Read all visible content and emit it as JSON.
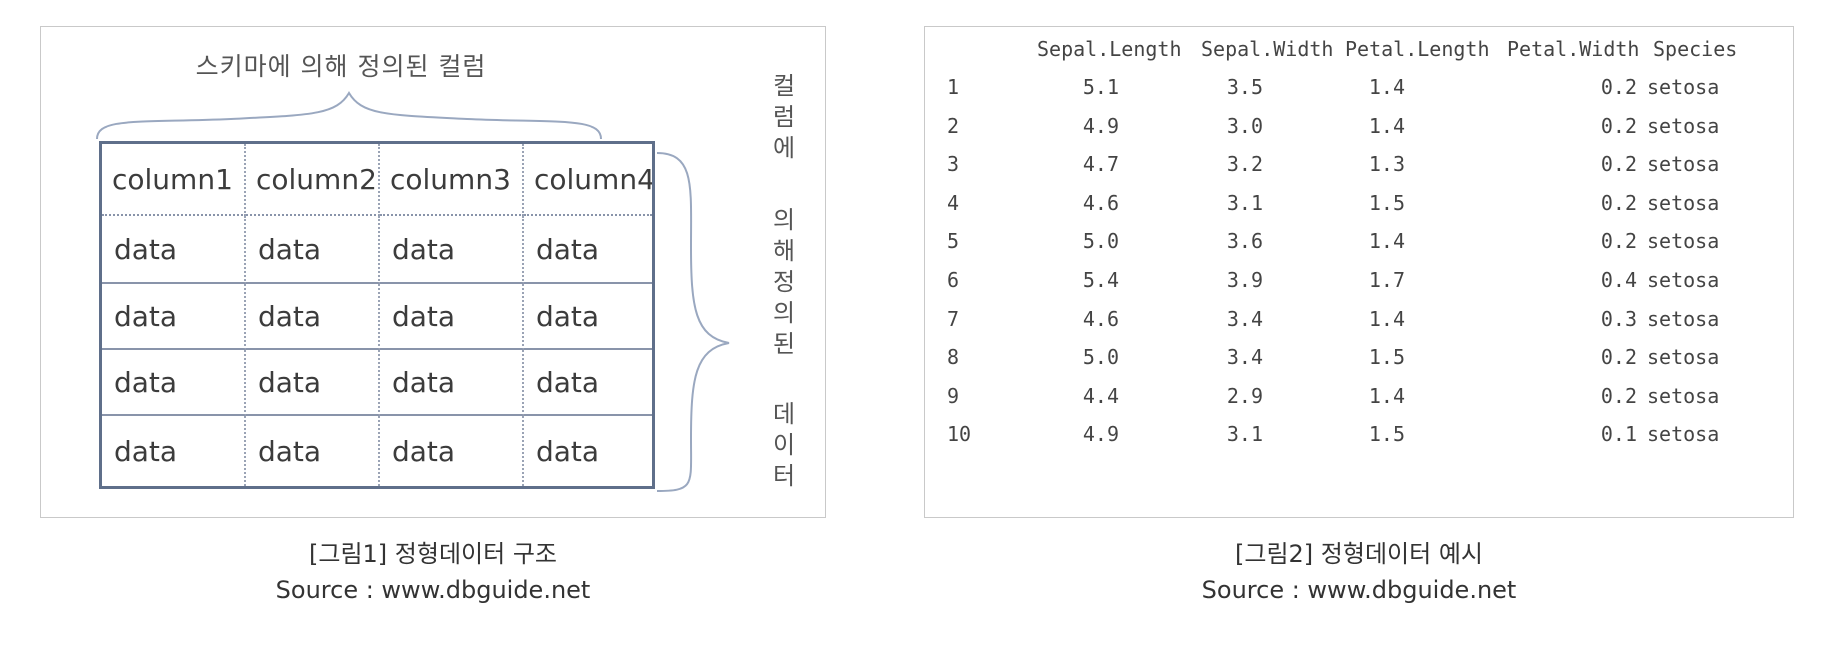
{
  "fig1": {
    "schema_label": "스키마에 의해 정의된 컬럼",
    "columns": [
      "column1",
      "column2",
      "column3",
      "column4"
    ],
    "rows": [
      [
        "data",
        "data",
        "data",
        "data"
      ],
      [
        "data",
        "data",
        "data",
        "data"
      ],
      [
        "data",
        "data",
        "data",
        "data"
      ],
      [
        "data",
        "data",
        "data",
        "data"
      ]
    ],
    "side_label": {
      "part1": [
        "컬",
        "럼",
        "에"
      ],
      "part2": [
        "의",
        "해",
        "정",
        "의",
        "된"
      ],
      "part3": [
        "데",
        "이",
        "터"
      ]
    },
    "caption": "[그림1] 정형데이터 구조",
    "source": "Source : www.dbguide.net"
  },
  "fig2": {
    "headers": [
      "Sepal.Length",
      "Sepal.Width",
      "Petal.Length",
      "Petal.Width",
      "Species"
    ],
    "rows": [
      [
        "1",
        "5.1",
        "3.5",
        "1.4",
        "0.2",
        "setosa"
      ],
      [
        "2",
        "4.9",
        "3.0",
        "1.4",
        "0.2",
        "setosa"
      ],
      [
        "3",
        "4.7",
        "3.2",
        "1.3",
        "0.2",
        "setosa"
      ],
      [
        "4",
        "4.6",
        "3.1",
        "1.5",
        "0.2",
        "setosa"
      ],
      [
        "5",
        "5.0",
        "3.6",
        "1.4",
        "0.2",
        "setosa"
      ],
      [
        "6",
        "5.4",
        "3.9",
        "1.7",
        "0.4",
        "setosa"
      ],
      [
        "7",
        "4.6",
        "3.4",
        "1.4",
        "0.3",
        "setosa"
      ],
      [
        "8",
        "5.0",
        "3.4",
        "1.5",
        "0.2",
        "setosa"
      ],
      [
        "9",
        "4.4",
        "2.9",
        "1.4",
        "0.2",
        "setosa"
      ],
      [
        "10",
        "4.9",
        "3.1",
        "1.5",
        "0.1",
        "setosa"
      ]
    ],
    "caption": "[그림2] 정형데이터 예시",
    "source": "Source : www.dbguide.net"
  }
}
